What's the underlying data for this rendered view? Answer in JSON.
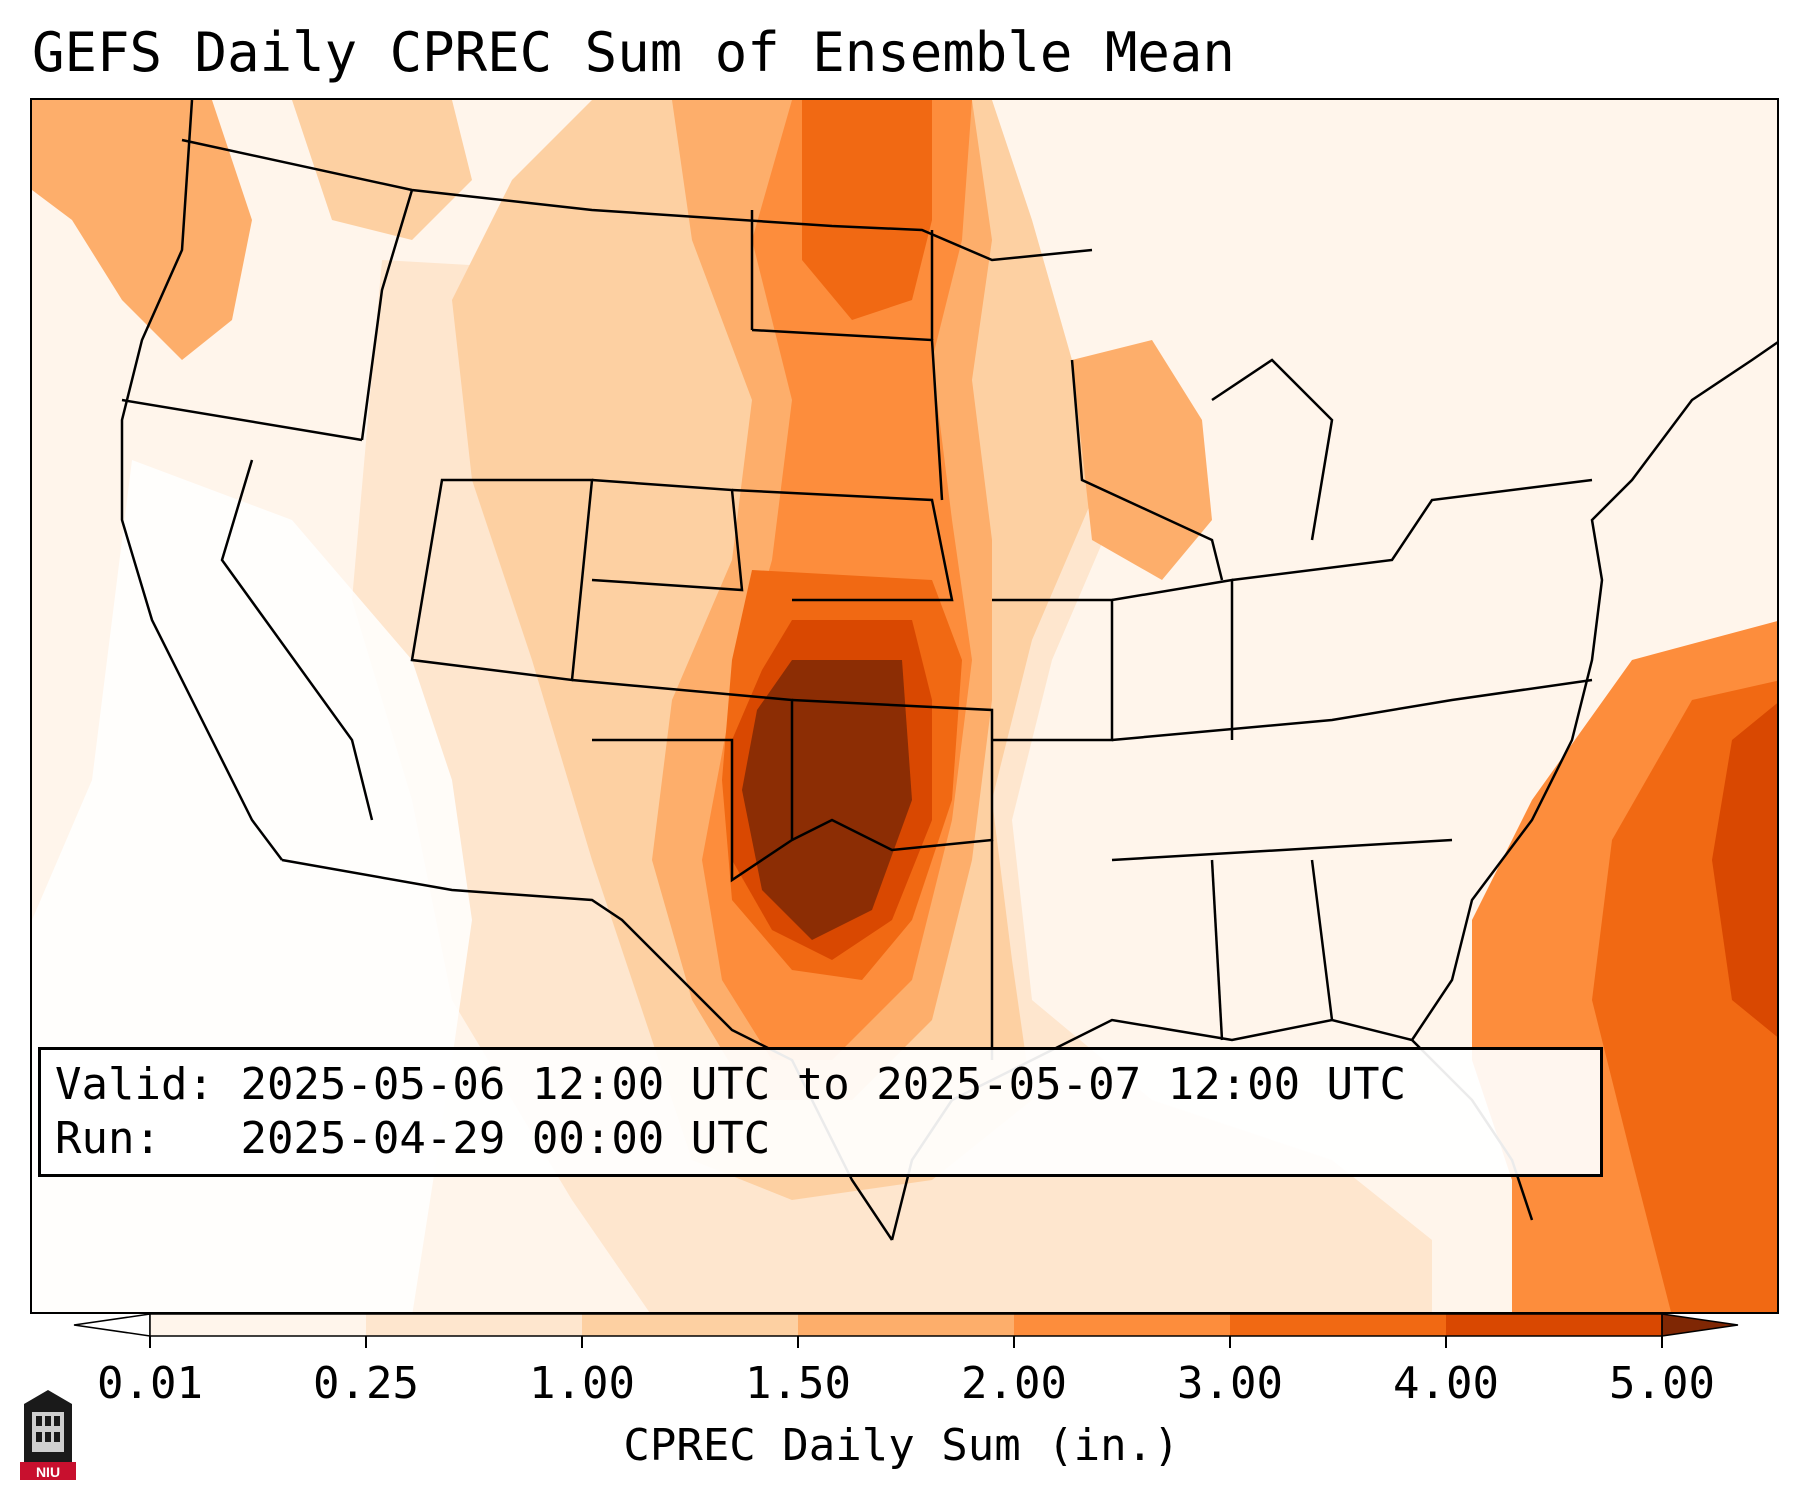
{
  "title": "GEFS Daily CPREC Sum of Ensemble Mean",
  "info": {
    "valid_label": "Valid:",
    "valid_text": "2025-05-06 12:00 UTC to 2025-05-07 12:00 UTC",
    "run_label": "Run:",
    "run_text": "2025-04-29 00:00 UTC"
  },
  "colorbar": {
    "label": "CPREC Daily Sum (in.)",
    "ticks": [
      "0.01",
      "0.25",
      "1.00",
      "1.50",
      "2.00",
      "3.00",
      "4.00",
      "5.00"
    ],
    "colors": [
      "#fff5eb",
      "#fee6ce",
      "#fdd0a2",
      "#fdae6b",
      "#fd8d3c",
      "#f16913",
      "#d94801",
      "#8c2d04"
    ],
    "under_color": "#ffffff",
    "over_color": "#7f2704"
  },
  "logo": {
    "text": "NIU",
    "name": "niu-logo"
  },
  "colors": {
    "land_outline": "#000000",
    "background": "#ffffff"
  }
}
